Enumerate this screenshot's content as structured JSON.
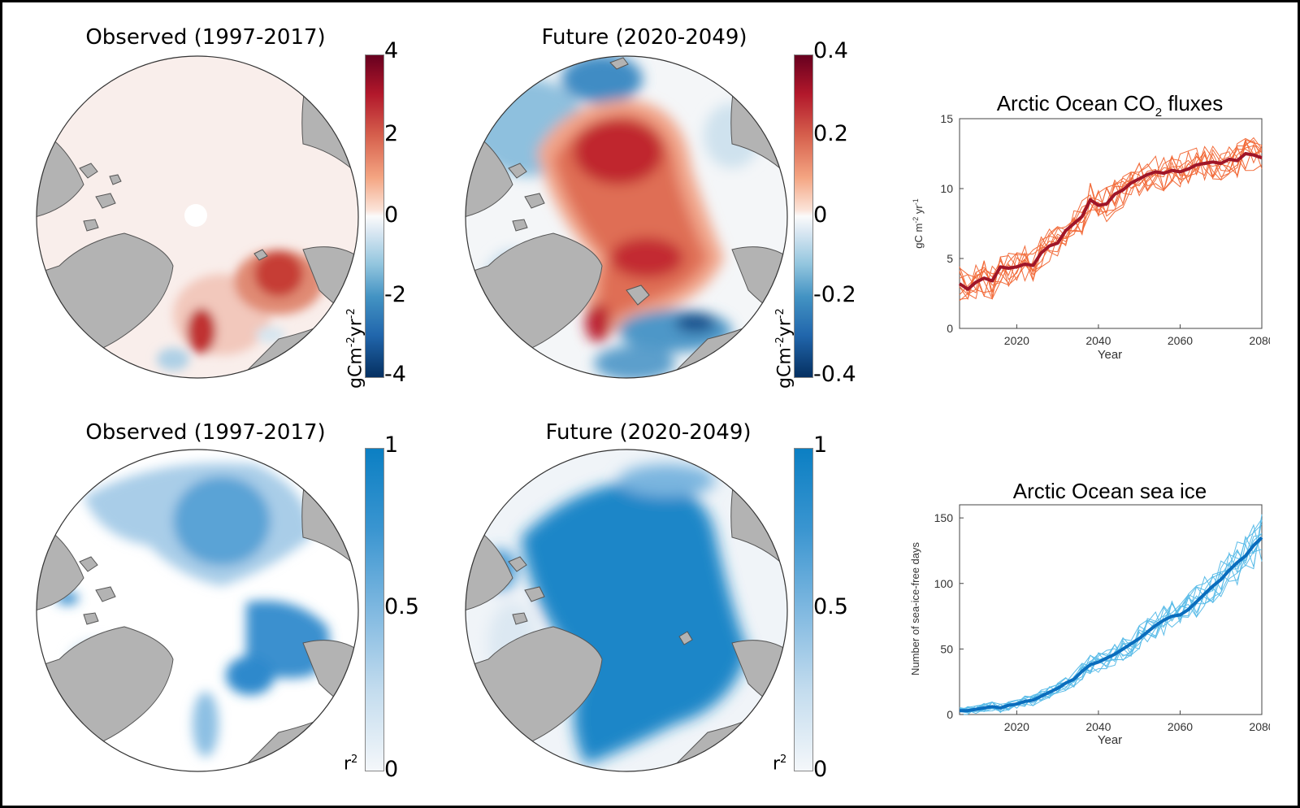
{
  "maps": {
    "top_left": {
      "title": "Observed (1997-2017)"
    },
    "top_mid": {
      "title": "Future (2020-2049)"
    },
    "bottom_left": {
      "title": "Observed (1997-2017)"
    },
    "bottom_mid": {
      "title": "Future (2020-2049)"
    }
  },
  "colorbars": {
    "flux_obs": {
      "ticks": [
        "4",
        "2",
        "0",
        "-2",
        "-4"
      ],
      "label": "gCm",
      "label_exp1": "-2",
      "label_mid": "yr",
      "label_exp2": "-2"
    },
    "flux_fut": {
      "ticks": [
        "0.4",
        "0.2",
        "0",
        "-0.2",
        "-0.4"
      ],
      "label": "gCm",
      "label_exp1": "-2",
      "label_mid": "yr",
      "label_exp2": "-2"
    },
    "r2_obs": {
      "ticks": [
        "1",
        "0.5",
        "0"
      ],
      "label": "r",
      "label_exp": "2"
    },
    "r2_fut": {
      "ticks": [
        "1",
        "0.5",
        "0"
      ],
      "label": "r",
      "label_exp": "2"
    }
  },
  "colors": {
    "land": "#b3b3b3",
    "ocean_neutral": "#f7f3f2",
    "red_dark": "#b2182b",
    "red_mid": "#e0705a",
    "blue_dark": "#2166ac",
    "blue_mid": "#4393c3",
    "r2_blue": "#1a86c8",
    "flux_member": "#f26b3a",
    "flux_mean": "#a01628",
    "ice_member": "#5bbce8",
    "ice_mean": "#0a6dbd"
  },
  "chart_data": [
    {
      "type": "line",
      "title": "Arctic Ocean CO",
      "title_sub": "2",
      "title_end": " fluxes",
      "xlabel": "Year",
      "ylabel": "gC m",
      "ylabel_exp1": "-2",
      "ylabel_mid": " yr",
      "ylabel_exp2": "-1",
      "xlim": [
        2006,
        2080
      ],
      "ylim": [
        0,
        15
      ],
      "xticks": [
        2020,
        2040,
        2060,
        2080
      ],
      "yticks": [
        0,
        5,
        10,
        15
      ],
      "series": [
        {
          "name": "ensemble-mean",
          "x": [
            2006,
            2008,
            2010,
            2012,
            2014,
            2016,
            2018,
            2020,
            2022,
            2024,
            2026,
            2028,
            2030,
            2032,
            2034,
            2036,
            2038,
            2040,
            2042,
            2044,
            2046,
            2048,
            2050,
            2052,
            2054,
            2056,
            2058,
            2060,
            2062,
            2064,
            2066,
            2068,
            2070,
            2072,
            2074,
            2076,
            2078,
            2080
          ],
          "y": [
            3.2,
            2.8,
            3.3,
            3.6,
            3.4,
            4.4,
            4.3,
            4.4,
            4.6,
            4.5,
            5.4,
            5.9,
            6.1,
            7.0,
            7.5,
            8.0,
            9.2,
            8.8,
            8.9,
            9.6,
            9.9,
            10.4,
            10.7,
            11.0,
            11.2,
            11.1,
            11.3,
            11.2,
            11.4,
            11.7,
            11.8,
            11.9,
            11.8,
            12.1,
            12.0,
            12.5,
            12.4,
            12.2
          ]
        }
      ]
    },
    {
      "type": "line",
      "title": "Arctic Ocean sea ice",
      "xlabel": "Year",
      "ylabel": "Number of sea-ice-free days",
      "xlim": [
        2006,
        2080
      ],
      "ylim": [
        0,
        160
      ],
      "xticks": [
        2020,
        2040,
        2060,
        2080
      ],
      "yticks": [
        0,
        50,
        100,
        150
      ],
      "series": [
        {
          "name": "ensemble-mean",
          "x": [
            2006,
            2008,
            2010,
            2012,
            2014,
            2016,
            2018,
            2020,
            2022,
            2024,
            2026,
            2028,
            2030,
            2032,
            2034,
            2036,
            2038,
            2040,
            2042,
            2044,
            2046,
            2048,
            2050,
            2052,
            2054,
            2056,
            2058,
            2060,
            2062,
            2064,
            2066,
            2068,
            2070,
            2072,
            2074,
            2076,
            2078,
            2080
          ],
          "y": [
            3,
            3,
            4,
            5,
            6,
            5,
            7,
            8,
            10,
            11,
            14,
            17,
            20,
            24,
            27,
            33,
            38,
            40,
            43,
            46,
            50,
            54,
            58,
            63,
            68,
            72,
            75,
            76,
            80,
            86,
            92,
            98,
            103,
            110,
            116,
            121,
            129,
            135
          ]
        }
      ]
    }
  ]
}
